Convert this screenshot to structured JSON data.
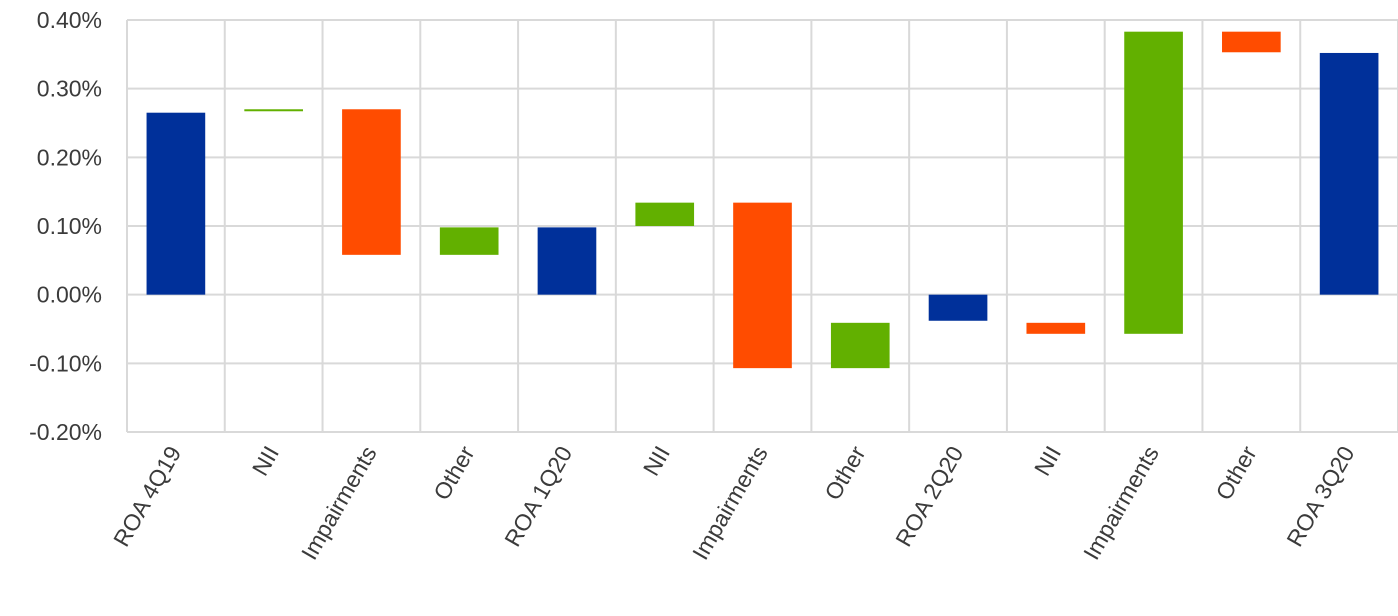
{
  "chart_data": {
    "type": "waterfall",
    "title": "",
    "xlabel": "",
    "ylabel": "",
    "ylim": [
      -0.2,
      0.4
    ],
    "y_ticks": [
      0.4,
      0.3,
      0.2,
      0.1,
      0.0,
      -0.1,
      -0.2
    ],
    "y_tick_labels": [
      "0.40%",
      "0.30%",
      "0.20%",
      "0.10%",
      "0.00%",
      "-0.10%",
      "-0.20%"
    ],
    "y_unit": "%",
    "grid": true,
    "legend": "none",
    "colors": {
      "total": "#00309A",
      "increase": "#62B000",
      "decrease": "#FF4C00",
      "grid": "#D9D9D9",
      "text": "#3B3B3B"
    },
    "categories": [
      "ROA 4Q19",
      "NII",
      "Impairments",
      "Other",
      "ROA 1Q20",
      "NII",
      "Impairments",
      "Other",
      "ROA 2Q20",
      "NII",
      "Impairments",
      "Other",
      "ROA 3Q20"
    ],
    "bars": [
      {
        "category": "ROA 4Q19",
        "kind": "total",
        "from": 0.0,
        "to": 0.265
      },
      {
        "category": "NII",
        "kind": "increase",
        "from": 0.268,
        "to": 0.27
      },
      {
        "category": "Impairments",
        "kind": "decrease",
        "from": 0.27,
        "to": 0.058
      },
      {
        "category": "Other",
        "kind": "increase",
        "from": 0.058,
        "to": 0.098
      },
      {
        "category": "ROA 1Q20",
        "kind": "total",
        "from": 0.0,
        "to": 0.098
      },
      {
        "category": "NII",
        "kind": "increase",
        "from": 0.1,
        "to": 0.134
      },
      {
        "category": "Impairments",
        "kind": "decrease",
        "from": 0.134,
        "to": -0.107
      },
      {
        "category": "Other",
        "kind": "increase",
        "from": -0.107,
        "to": -0.041
      },
      {
        "category": "ROA 2Q20",
        "kind": "total",
        "from": 0.0,
        "to": -0.038
      },
      {
        "category": "NII",
        "kind": "decrease",
        "from": -0.041,
        "to": -0.057
      },
      {
        "category": "Impairments",
        "kind": "increase",
        "from": -0.057,
        "to": 0.383
      },
      {
        "category": "Other",
        "kind": "decrease",
        "from": 0.383,
        "to": 0.353
      },
      {
        "category": "ROA 3Q20",
        "kind": "total",
        "from": 0.0,
        "to": 0.352
      }
    ]
  }
}
